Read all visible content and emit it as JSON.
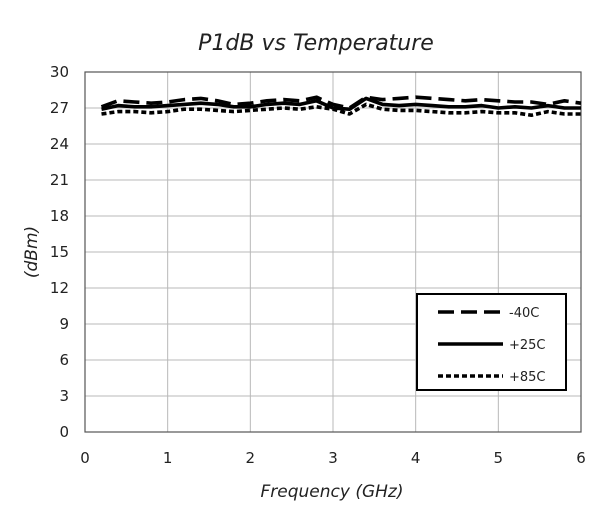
{
  "chart_data": {
    "type": "line",
    "title": "P1dB vs Temperature",
    "xlabel": "Frequency (GHz)",
    "ylabel": "(dBm)",
    "xlim": [
      0,
      6
    ],
    "ylim": [
      0,
      30
    ],
    "xticks": [
      0,
      1,
      2,
      3,
      4,
      5,
      6
    ],
    "yticks": [
      0,
      3,
      6,
      9,
      12,
      15,
      18,
      21,
      24,
      27,
      30
    ],
    "grid": true,
    "legend_position": "bottom-right",
    "series": [
      {
        "name": "-40C",
        "style": "long-dash",
        "color": "#000000",
        "x": [
          0.2,
          0.4,
          0.6,
          0.8,
          1.0,
          1.2,
          1.4,
          1.6,
          1.8,
          2.0,
          2.2,
          2.4,
          2.6,
          2.8,
          3.0,
          3.2,
          3.4,
          3.6,
          3.8,
          4.0,
          4.2,
          4.4,
          4.6,
          4.8,
          5.0,
          5.2,
          5.4,
          5.6,
          5.8,
          6.0
        ],
        "y": [
          27.1,
          27.6,
          27.5,
          27.4,
          27.5,
          27.7,
          27.8,
          27.6,
          27.3,
          27.4,
          27.6,
          27.7,
          27.6,
          27.9,
          27.3,
          27.0,
          27.9,
          27.7,
          27.8,
          27.9,
          27.8,
          27.7,
          27.6,
          27.7,
          27.6,
          27.5,
          27.5,
          27.3,
          27.6,
          27.4
        ]
      },
      {
        "name": "+25C",
        "style": "solid",
        "color": "#000000",
        "x": [
          0.2,
          0.4,
          0.6,
          0.8,
          1.0,
          1.2,
          1.4,
          1.6,
          1.8,
          2.0,
          2.2,
          2.4,
          2.6,
          2.8,
          3.0,
          3.2,
          3.4,
          3.6,
          3.8,
          4.0,
          4.2,
          4.4,
          4.6,
          4.8,
          5.0,
          5.2,
          5.4,
          5.6,
          5.8,
          6.0
        ],
        "y": [
          26.9,
          27.2,
          27.1,
          27.1,
          27.2,
          27.3,
          27.4,
          27.3,
          27.1,
          27.1,
          27.3,
          27.4,
          27.3,
          27.6,
          27.0,
          26.9,
          27.8,
          27.3,
          27.2,
          27.3,
          27.2,
          27.1,
          27.1,
          27.2,
          27.0,
          27.1,
          27.0,
          27.2,
          27.0,
          27.0
        ]
      },
      {
        "name": "+85C",
        "style": "short-dash",
        "color": "#000000",
        "x": [
          0.2,
          0.4,
          0.6,
          0.8,
          1.0,
          1.2,
          1.4,
          1.6,
          1.8,
          2.0,
          2.2,
          2.4,
          2.6,
          2.8,
          3.0,
          3.2,
          3.4,
          3.6,
          3.8,
          4.0,
          4.2,
          4.4,
          4.6,
          4.8,
          5.0,
          5.2,
          5.4,
          5.6,
          5.8,
          6.0
        ],
        "y": [
          26.5,
          26.7,
          26.7,
          26.6,
          26.7,
          26.9,
          26.9,
          26.8,
          26.7,
          26.8,
          26.9,
          27.0,
          26.9,
          27.1,
          26.9,
          26.5,
          27.3,
          26.9,
          26.8,
          26.8,
          26.7,
          26.6,
          26.6,
          26.7,
          26.6,
          26.6,
          26.4,
          26.7,
          26.5,
          26.5
        ]
      }
    ]
  }
}
